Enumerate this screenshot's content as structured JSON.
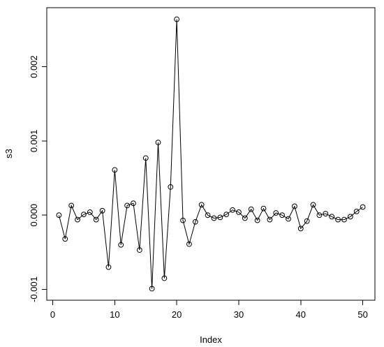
{
  "chart_data": {
    "type": "line",
    "xlabel": "Index",
    "ylabel": "s3",
    "xlim": [
      1,
      50
    ],
    "ylim": [
      -0.001,
      0.00265
    ],
    "xticks": [
      0,
      10,
      20,
      30,
      40,
      50
    ],
    "xtick_labels": [
      "0",
      "10",
      "20",
      "30",
      "40",
      "50"
    ],
    "yticks": [
      -0.001,
      0.0,
      0.001,
      0.002
    ],
    "ytick_labels": [
      "-0.001",
      "0.000",
      "0.001",
      "0.002"
    ],
    "grid": false,
    "frame": true,
    "marker": "open-circle",
    "line_color": "#000000",
    "x": [
      1,
      2,
      3,
      4,
      5,
      6,
      7,
      8,
      9,
      10,
      11,
      12,
      13,
      14,
      15,
      16,
      17,
      18,
      19,
      20,
      21,
      22,
      23,
      24,
      25,
      26,
      27,
      28,
      29,
      30,
      31,
      32,
      33,
      34,
      35,
      36,
      37,
      38,
      39,
      40,
      41,
      42,
      43,
      44,
      45,
      46,
      47,
      48,
      49,
      50
    ],
    "values": [
      0.0,
      -0.00032,
      0.00013,
      -6e-05,
      1e-05,
      4e-05,
      -6e-05,
      6e-05,
      -0.0007,
      0.00061,
      -0.0004,
      0.00013,
      0.00016,
      -0.00047,
      0.00077,
      -0.00099,
      0.00098,
      -0.00085,
      0.00038,
      0.00264,
      -7e-05,
      -0.00039,
      -9e-05,
      0.00014,
      0.0,
      -4e-05,
      -3e-05,
      1e-05,
      7e-05,
      4e-05,
      -4e-05,
      8e-05,
      -7e-05,
      9e-05,
      -6e-05,
      3e-05,
      0.0,
      -5e-05,
      0.00012,
      -0.00018,
      -8e-05,
      0.00014,
      0.0,
      2e-05,
      -2e-05,
      -6e-05,
      -6e-05,
      -2e-05,
      5e-05,
      0.00011
    ]
  },
  "labels": {
    "x_axis": "Index",
    "y_axis": "s3"
  }
}
